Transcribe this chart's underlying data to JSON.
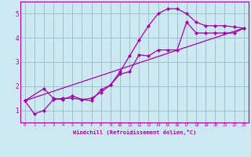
{
  "bg_color": "#cce8f0",
  "line_color": "#aa00aa",
  "grid_color": "#99bbcc",
  "axis_bar_color": "#6633aa",
  "xlabel": "Windchill (Refroidissement éolien,°C)",
  "xlim": [
    -0.5,
    23.5
  ],
  "ylim": [
    0.5,
    5.5
  ],
  "xticks": [
    0,
    1,
    2,
    3,
    4,
    5,
    6,
    7,
    8,
    9,
    10,
    11,
    12,
    13,
    14,
    15,
    16,
    17,
    18,
    19,
    20,
    21,
    22,
    23
  ],
  "yticks": [
    1,
    2,
    3,
    4,
    5
  ],
  "line1_x": [
    0,
    1,
    2,
    3,
    4,
    5,
    6,
    7,
    8,
    9,
    10,
    11,
    12,
    13,
    14,
    15,
    16,
    17,
    18,
    19,
    20,
    21,
    22,
    23
  ],
  "line1_y": [
    1.4,
    0.85,
    1.0,
    1.45,
    1.5,
    1.5,
    1.45,
    1.4,
    1.85,
    2.05,
    2.6,
    3.25,
    3.9,
    4.5,
    5.0,
    5.2,
    5.2,
    5.0,
    4.65,
    4.5,
    4.5,
    4.5,
    4.45,
    4.4
  ],
  "line2_x": [
    0,
    2,
    3,
    4,
    5,
    6,
    7,
    8,
    9,
    10,
    11,
    12,
    13,
    14,
    15,
    16,
    17,
    18,
    19,
    20,
    21,
    22,
    23
  ],
  "line2_y": [
    1.4,
    1.9,
    1.5,
    1.45,
    1.6,
    1.45,
    1.5,
    1.75,
    2.05,
    2.5,
    2.6,
    3.3,
    3.25,
    3.5,
    3.5,
    3.5,
    4.65,
    4.2,
    4.2,
    4.2,
    4.2,
    4.2,
    4.4
  ],
  "line3_x": [
    0,
    23
  ],
  "line3_y": [
    1.4,
    4.4
  ],
  "marker": "D",
  "marker_size": 2.2,
  "linewidth": 0.9
}
